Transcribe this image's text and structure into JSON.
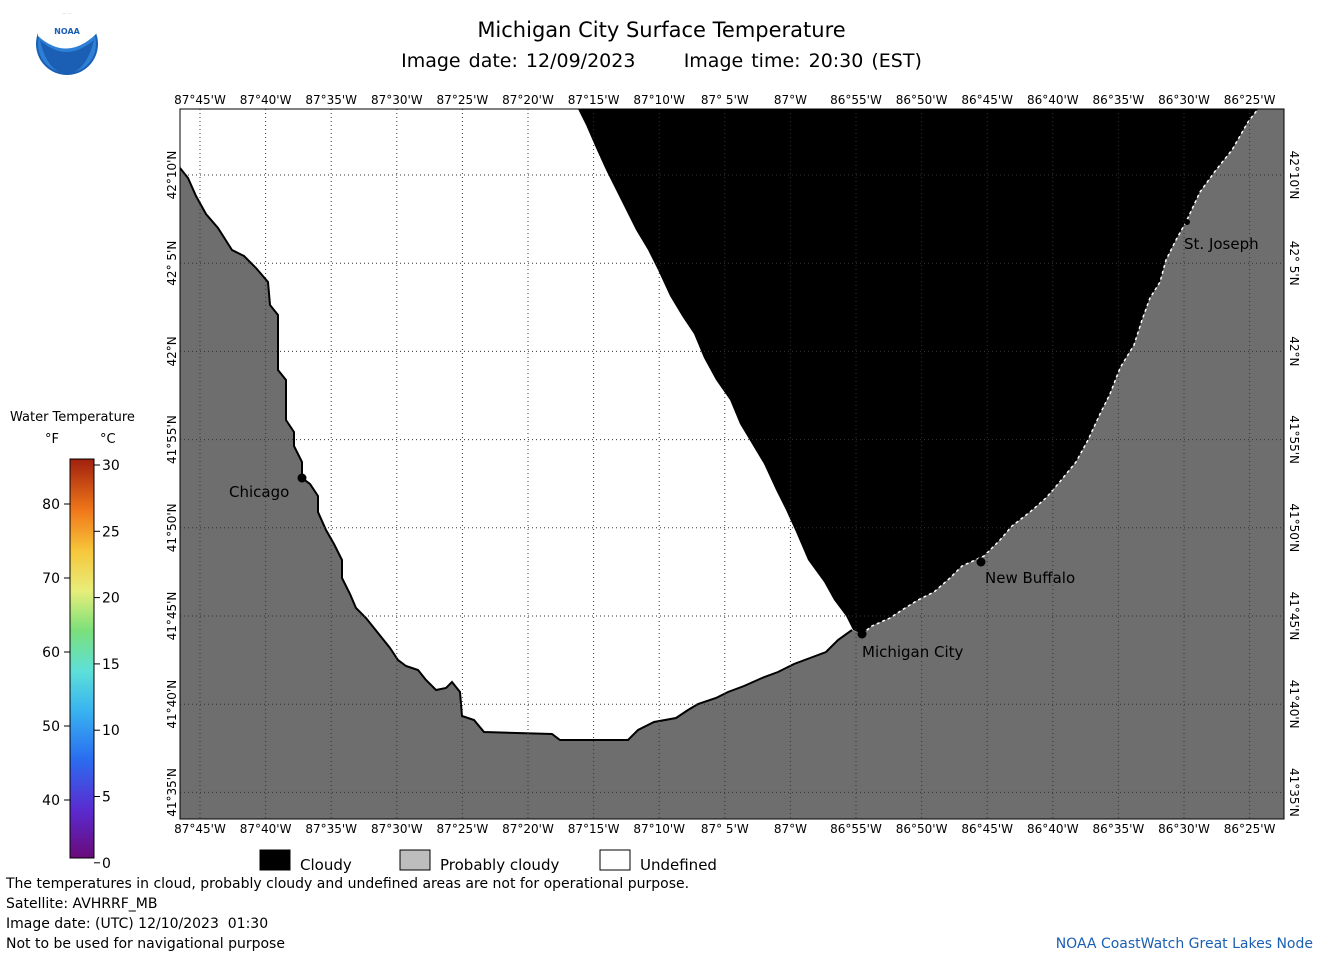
{
  "header": {
    "title": "Michigan City Surface Temperature",
    "image_date": "Image date: 12/09/2023",
    "image_time": "Image time: 20:30 (EST)",
    "logo_text": "NOAA"
  },
  "map": {
    "lon_labels": [
      "87°45'W",
      "87°40'W",
      "87°35'W",
      "87°30'W",
      "87°25'W",
      "87°20'W",
      "87°15'W",
      "87°10'W",
      "87° 5'W",
      "87°W",
      "86°55'W",
      "86°50'W",
      "86°45'W",
      "86°40'W",
      "86°35'W",
      "86°30'W",
      "86°25'W"
    ],
    "lat_labels": [
      "42°10'N",
      "42° 5'N",
      "42°N",
      "41°55'N",
      "41°50'N",
      "41°45'N",
      "41°40'N",
      "41°35'N"
    ],
    "cities": [
      {
        "name": "Chicago"
      },
      {
        "name": "Michigan City"
      },
      {
        "name": "New Buffalo"
      },
      {
        "name": "St. Joseph"
      }
    ],
    "colors": {
      "land": "#6e6e6e",
      "cloudy": "#000000",
      "probably_cloudy": "#bdbdbd",
      "undefined": "#ffffff"
    }
  },
  "colorbar": {
    "title": "Water Temperature",
    "unit_f": "°F",
    "unit_c": "°C",
    "f_ticks": [
      "80",
      "70",
      "60",
      "50",
      "40"
    ],
    "c_ticks": [
      "30",
      "25",
      "20",
      "15",
      "10",
      "5",
      "0"
    ]
  },
  "legend": {
    "cloudy": "Cloudy",
    "probably_cloudy": "Probably cloudy",
    "undefined": "Undefined"
  },
  "footer": {
    "disclaimer": "The temperatures in cloud, probably cloudy and undefined areas are not for operational purpose.",
    "satellite": "Satellite: AVHRRF_MB",
    "utc_date": "Image date: (UTC) 12/10/2023  01:30",
    "nav_warning": "Not to be used for navigational purpose",
    "credit": "NOAA CoastWatch Great Lakes Node"
  }
}
